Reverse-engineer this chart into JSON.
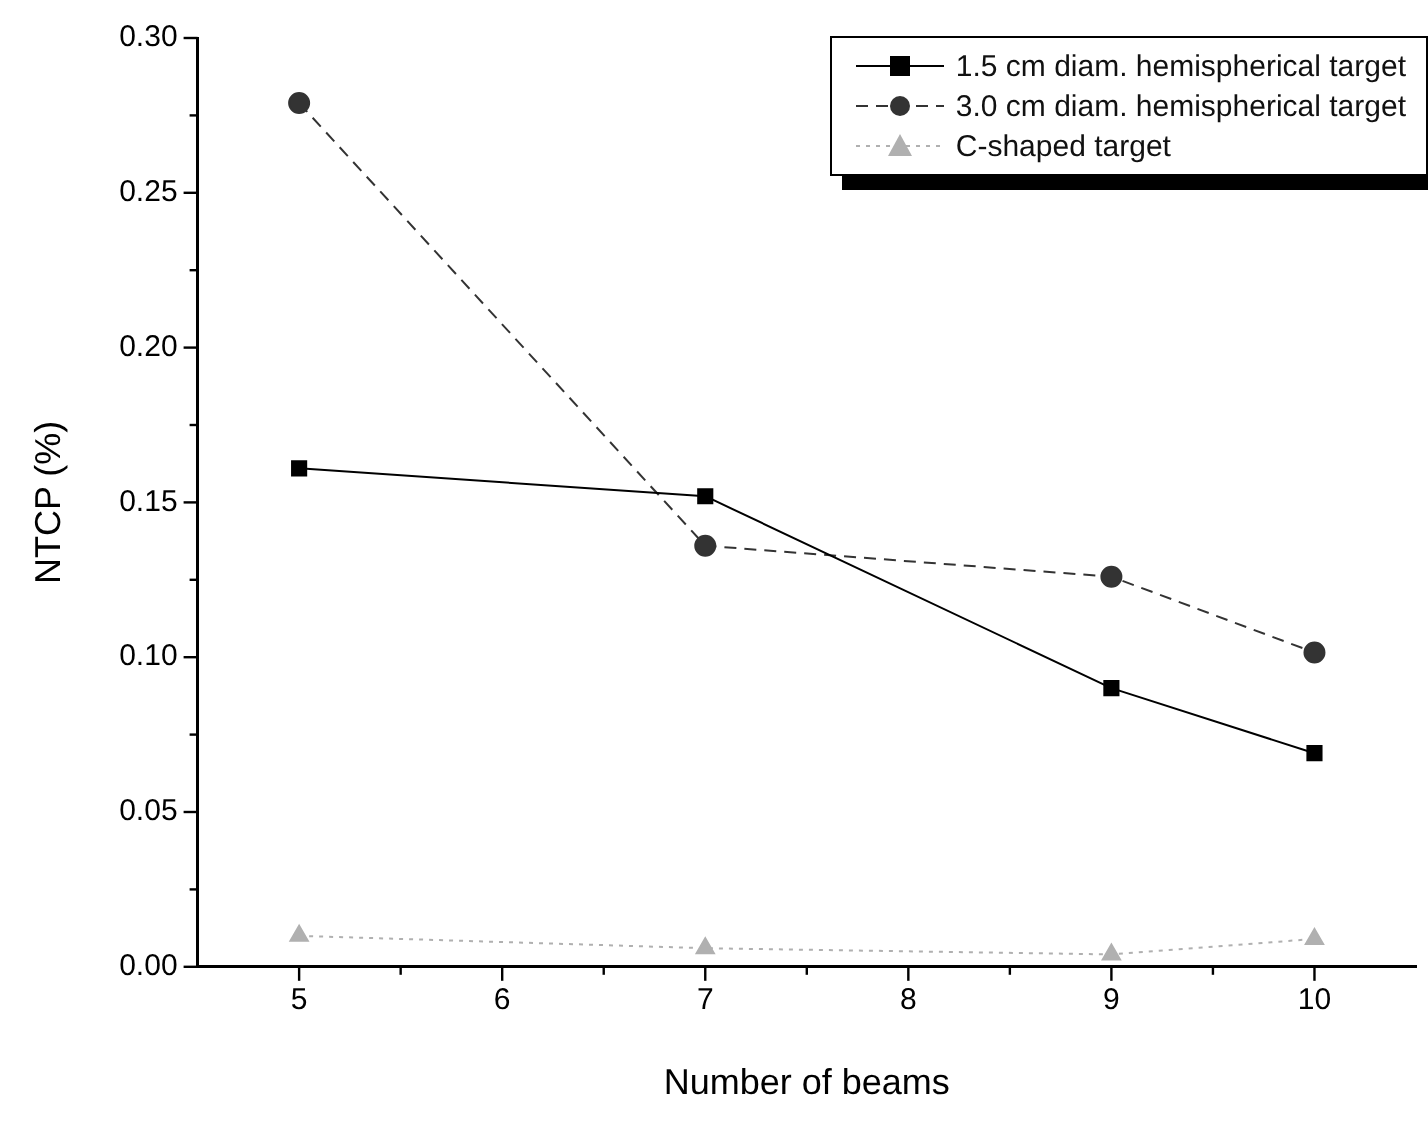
{
  "chart_data": {
    "type": "line",
    "xlabel": "Number of beams",
    "ylabel": "NTCP (%)",
    "x": [
      5,
      7,
      9,
      10
    ],
    "series": [
      {
        "name": "1.5 cm diam. hemispherical target",
        "color": "#000000",
        "marker": "square",
        "line_style": "solid",
        "values": [
          0.161,
          0.152,
          0.09,
          0.069
        ]
      },
      {
        "name": "3.0 cm diam. hemispherical target",
        "color": "#333333",
        "marker": "circle",
        "line_style": "dashed",
        "values": [
          0.279,
          0.136,
          0.126,
          0.1015
        ]
      },
      {
        "name": "C-shaped target",
        "color": "#b0b0b0",
        "marker": "triangle",
        "line_style": "dotted",
        "values": [
          0.01,
          0.006,
          0.004,
          0.009
        ]
      }
    ],
    "xlim": [
      4.5,
      10.5
    ],
    "xticks": [
      5,
      6,
      7,
      8,
      9,
      10
    ],
    "ylim": [
      0,
      0.3
    ],
    "yticks": [
      {
        "value": 0,
        "label": "0.00"
      },
      {
        "value": 0.05,
        "label": "0.05"
      },
      {
        "value": 0.1,
        "label": "0.10"
      },
      {
        "value": 0.15,
        "label": "0.15"
      },
      {
        "value": 0.2,
        "label": "0.20"
      },
      {
        "value": 0.25,
        "label": "0.25"
      },
      {
        "value": 0.3,
        "label": "0.30"
      }
    ],
    "grid": false,
    "legend": "top right"
  }
}
